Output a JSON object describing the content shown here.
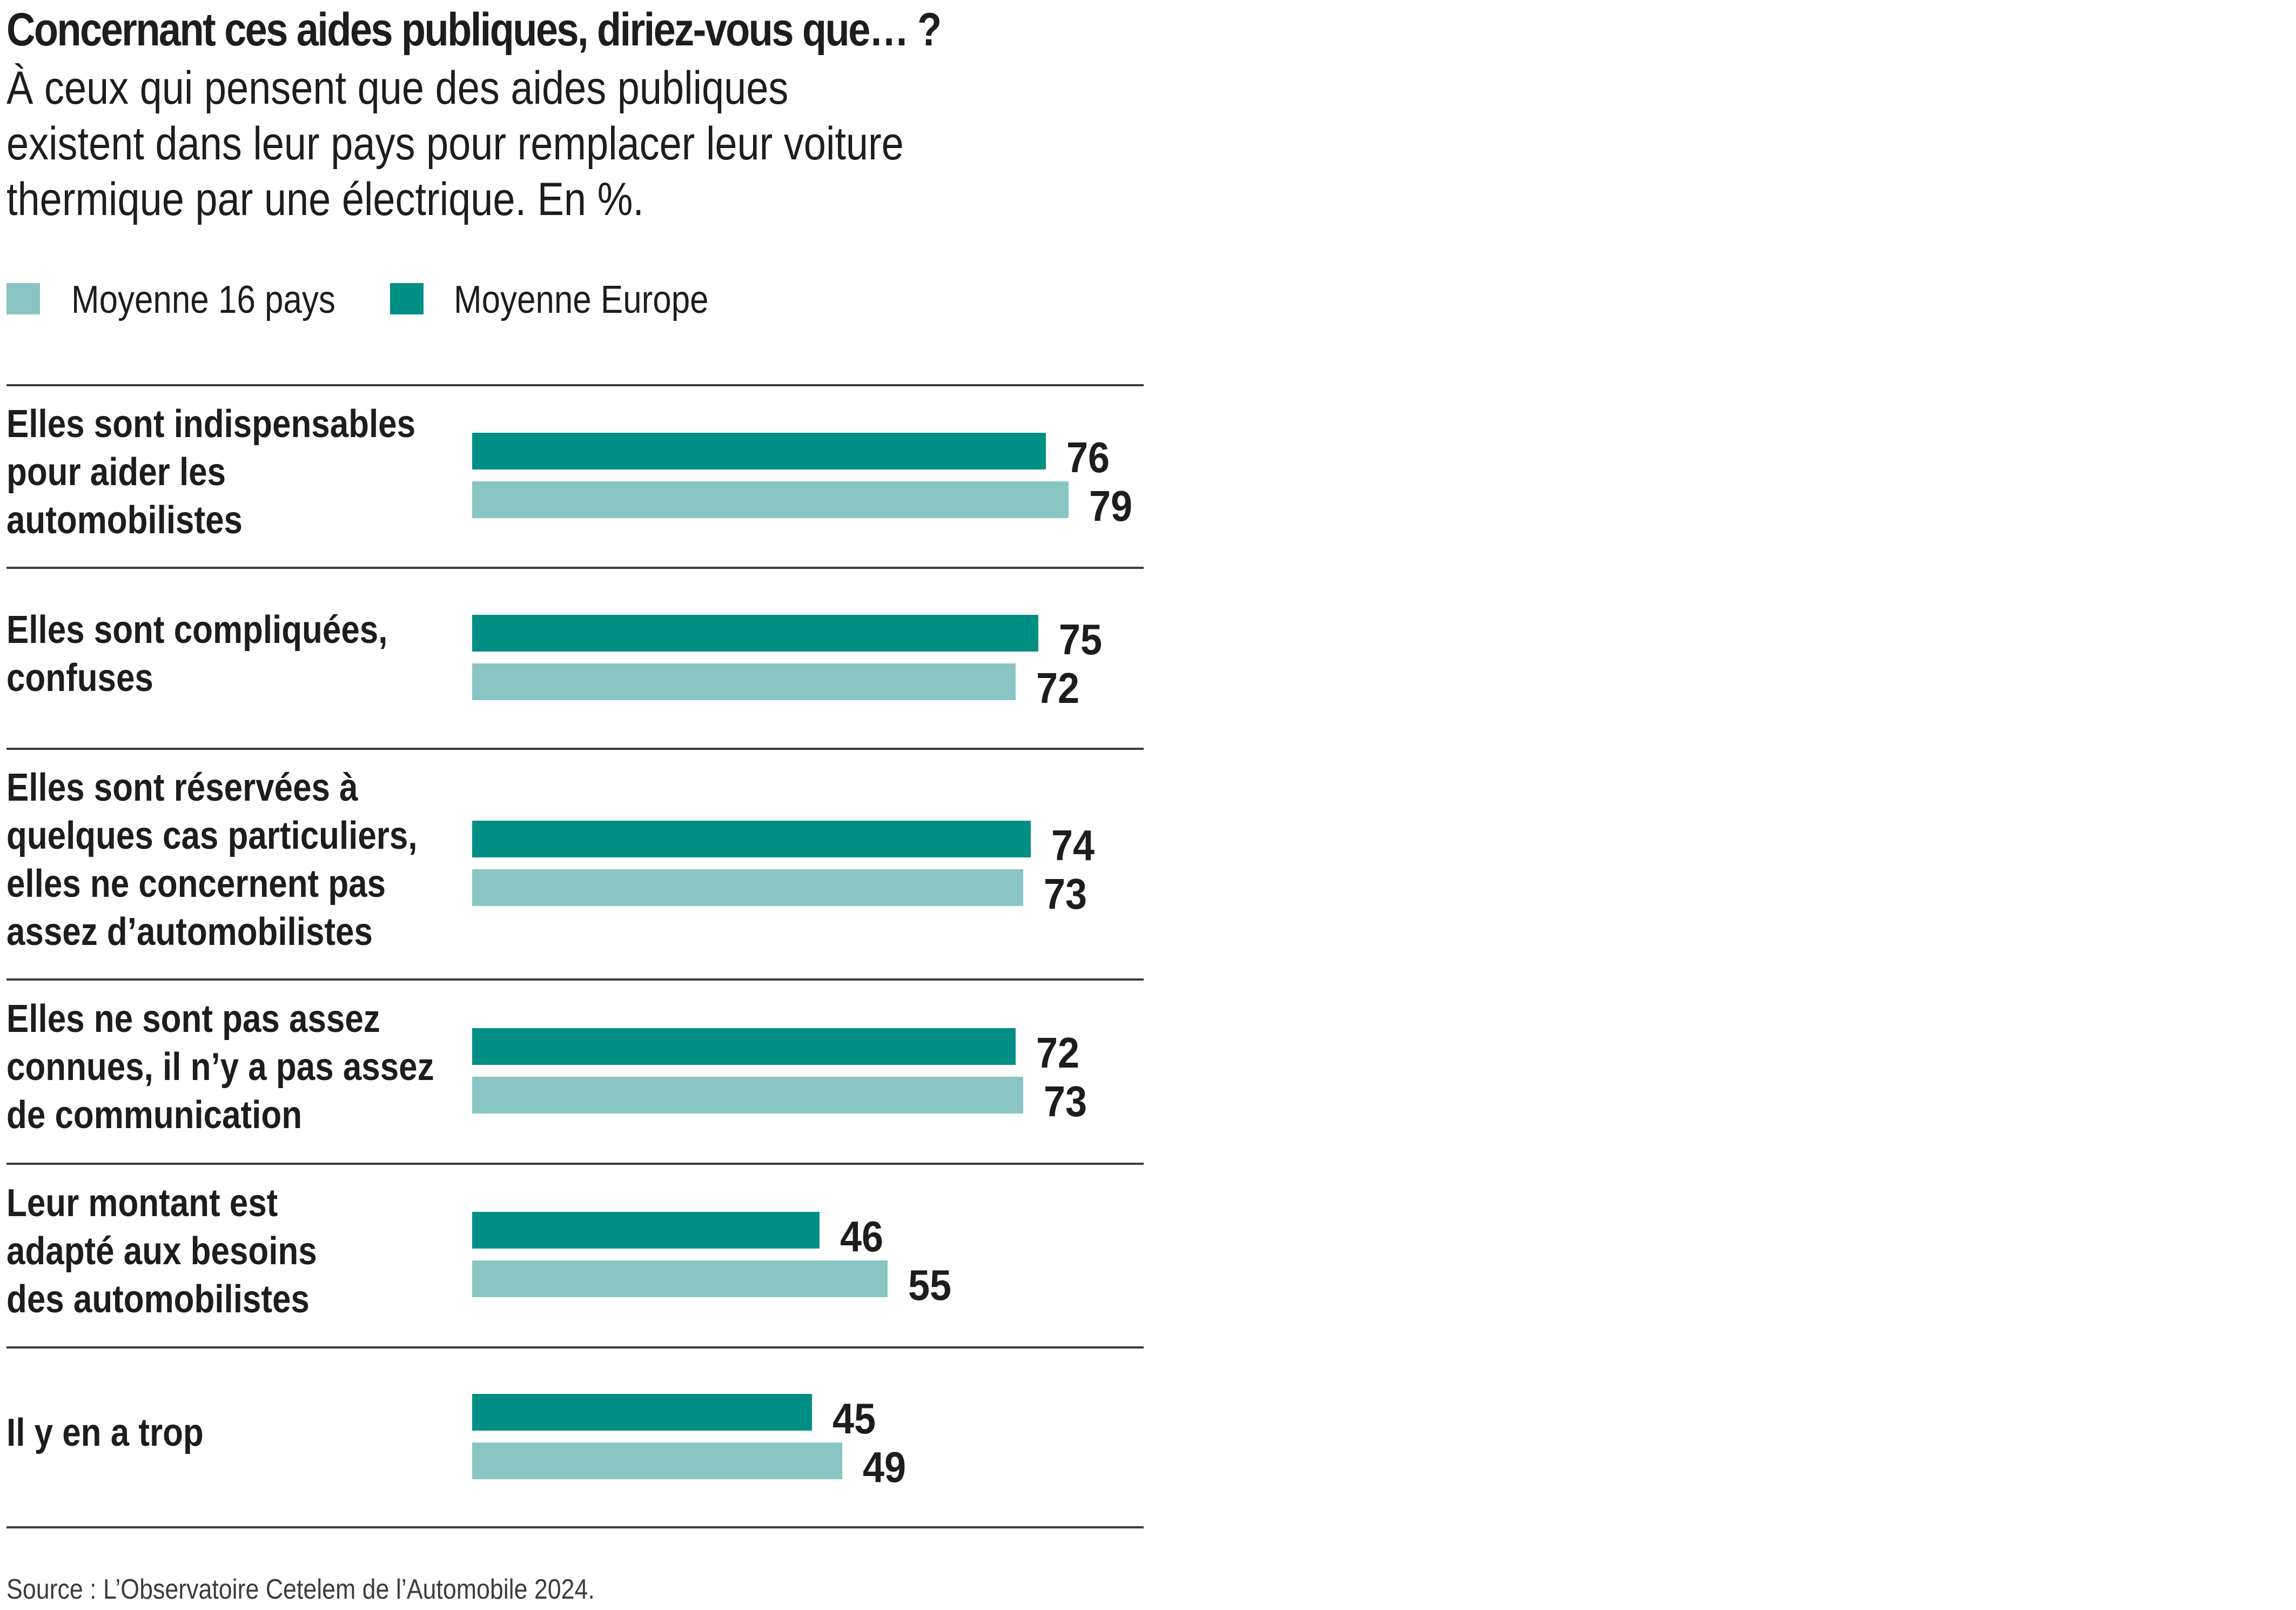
{
  "header": {
    "title": "Concernant ces aides publiques, diriez-vous que… ?",
    "subtitle_lines": [
      "À ceux qui pensent que des aides publiques",
      "existent dans leur pays pour remplacer leur voiture",
      "thermique par une électrique. En %."
    ]
  },
  "colors": {
    "moyenne_europe": "#008F85",
    "moyenne_16_pays": "#89C5C2",
    "text": "#1d1d1b",
    "rule": "#3c3c3b"
  },
  "legend": [
    {
      "label": "Moyenne 16 pays",
      "color": "#89C5C2"
    },
    {
      "label": "Moyenne Europe",
      "color": "#008F85"
    }
  ],
  "footer": {
    "source": "Source : L’Observatoire Cetelem de l’Automobile 2024."
  },
  "chart_data": {
    "type": "bar",
    "orientation": "horizontal",
    "title": "Concernant ces aides publiques, diriez-vous que… ?",
    "subtitle": "À ceux qui pensent que des aides publiques existent dans leur pays pour remplacer leur voiture thermique par une électrique. En %.",
    "xlabel": "",
    "ylabel": "",
    "unit": "%",
    "xlim": [
      0,
      100
    ],
    "grid": false,
    "legend_position": "top-left",
    "categories": [
      "Elles sont indispensables\npour aider les\nautomobilistes",
      "Elles sont compliquées,\nconfuses",
      "Elles sont réservées à\nquelques cas particuliers,\nelles ne concernent pas\nassez d’automobilistes",
      "Elles ne sont pas assez\nconnues, il n’y a pas assez\nde communication",
      "Leur montant est\nadapté aux besoins\ndes automobilistes",
      "Il y en a trop"
    ],
    "series": [
      {
        "name": "Moyenne Europe",
        "color": "#008F85",
        "values": [
          76,
          75,
          74,
          72,
          46,
          45
        ]
      },
      {
        "name": "Moyenne 16 pays",
        "color": "#89C5C2",
        "values": [
          79,
          72,
          73,
          73,
          55,
          49
        ]
      }
    ],
    "source": "Source : L’Observatoire Cetelem de l’Automobile 2024."
  }
}
